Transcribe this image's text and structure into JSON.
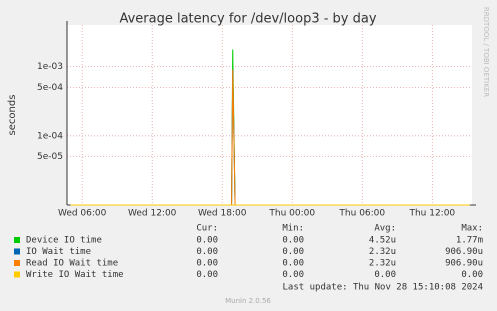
{
  "chart_data": {
    "type": "line",
    "title": "Average latency for /dev/loop3 - by day",
    "y_label": "seconds",
    "log_y": true,
    "grid": true,
    "x": [
      5,
      18.8,
      18.9,
      19.1,
      39.2
    ],
    "xlim": [
      4.7,
      39.4
    ],
    "xticks": [
      {
        "value": 6,
        "label": "Wed 06:00"
      },
      {
        "value": 12,
        "label": "Wed 12:00"
      },
      {
        "value": 18,
        "label": "Wed 18:00"
      },
      {
        "value": 24,
        "label": "Thu 00:00"
      },
      {
        "value": 30,
        "label": "Thu 06:00"
      },
      {
        "value": 36,
        "label": "Thu 12:00"
      }
    ],
    "ylim": [
      1e-05,
      0.004
    ],
    "yticks": [
      {
        "value": 0.001,
        "label": "1e-03"
      },
      {
        "value": 0.0005,
        "label": "5e-04"
      },
      {
        "value": 0.0001,
        "label": "1e-04"
      },
      {
        "value": 5e-05,
        "label": "5e-05"
      }
    ],
    "series": [
      {
        "name": "Device IO time",
        "color": "#00cc00",
        "values": [
          0,
          0,
          0.00177,
          0,
          0
        ]
      },
      {
        "name": "IO Wait time",
        "color": "#0066b3",
        "values": [
          0,
          0,
          0.0009069,
          0,
          0
        ]
      },
      {
        "name": "Read IO Wait time",
        "color": "#ff8000",
        "values": [
          0,
          0,
          0.0009069,
          0,
          0
        ]
      },
      {
        "name": "Write IO Wait time",
        "color": "#ffcc00",
        "values": [
          0,
          0,
          0,
          0,
          0
        ]
      }
    ],
    "summary": {
      "headers": [
        "Cur:",
        "Min:",
        "Avg:",
        "Max:"
      ],
      "rows": [
        [
          "0.00",
          "0.00",
          "4.52u",
          "1.77m"
        ],
        [
          "0.00",
          "0.00",
          "2.32u",
          "906.90u"
        ],
        [
          "0.00",
          "0.00",
          "2.32u",
          "906.90u"
        ],
        [
          "0.00",
          "0.00",
          "0.00",
          "0.00"
        ]
      ]
    },
    "last_update": "Last update: Thu Nov 28 15:10:08 2024",
    "watermark": "RRDTOOL / TOBI OETIKER",
    "footer": "Munin 2.0.56"
  }
}
